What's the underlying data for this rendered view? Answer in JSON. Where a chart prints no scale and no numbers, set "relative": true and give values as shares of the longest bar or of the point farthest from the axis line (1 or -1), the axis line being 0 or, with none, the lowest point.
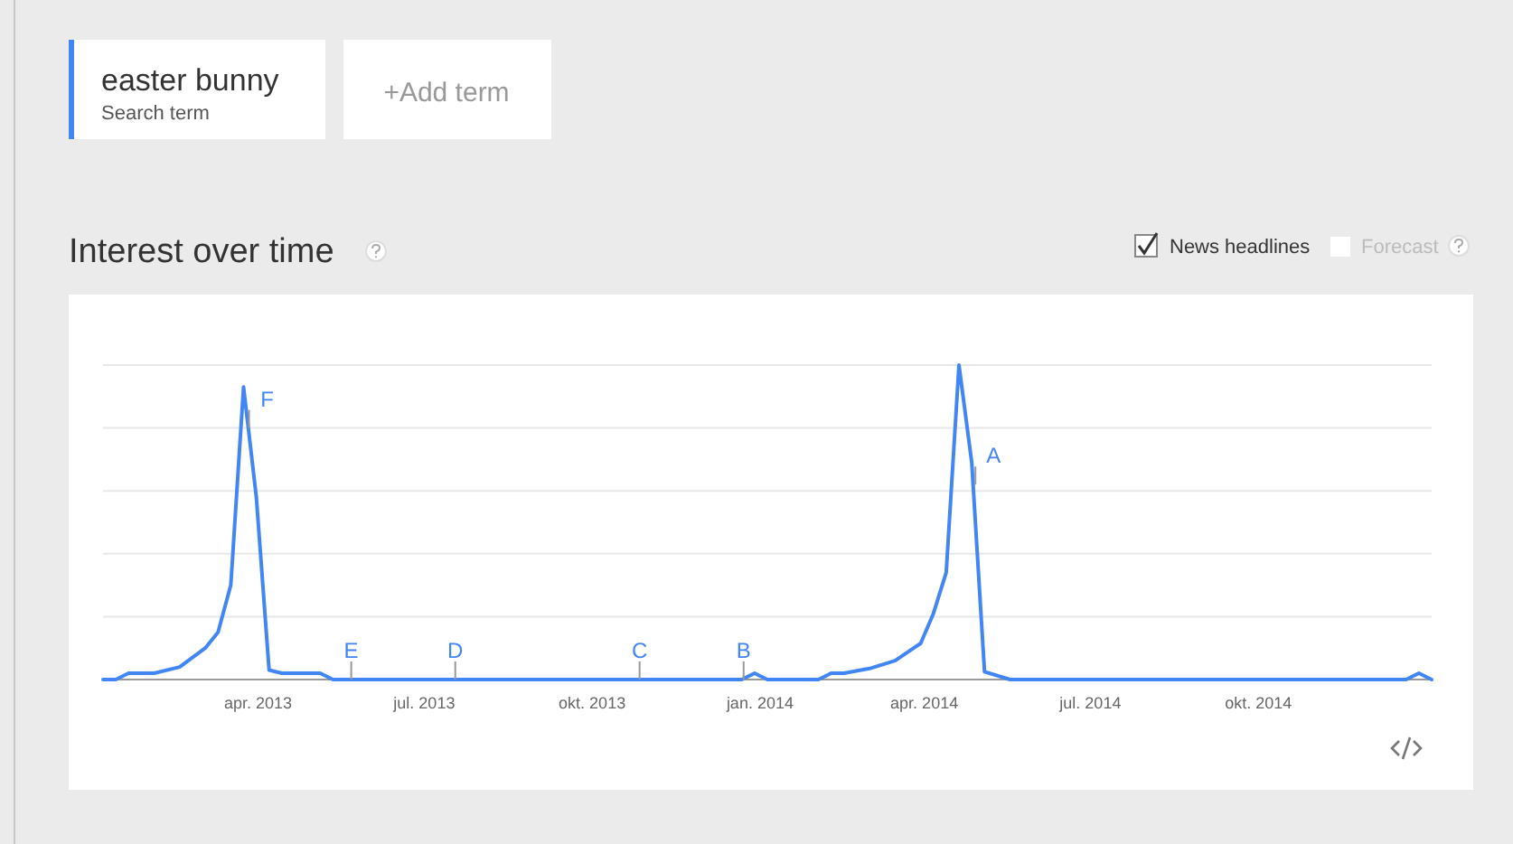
{
  "chart_data": {
    "type": "line",
    "title": "Interest over time",
    "relative": true,
    "grid": "y",
    "legend": "top left",
    "marker": "none",
    "line_style": "solid",
    "xlim": [
      "2013-01-06",
      "2015-01-04"
    ],
    "xticks": [
      {
        "value": "2013-04-01",
        "label": "apr. 2013"
      },
      {
        "value": "2013-07-01",
        "label": "jul. 2013"
      },
      {
        "value": "2013-10-01",
        "label": "okt. 2013"
      },
      {
        "value": "2014-01-01",
        "label": "jan. 2014"
      },
      {
        "value": "2014-04-01",
        "label": "apr. 2014"
      },
      {
        "value": "2014-07-01",
        "label": "jul. 2014"
      },
      {
        "value": "2014-10-01",
        "label": "okt. 2014"
      }
    ],
    "series": [
      {
        "name": "easter bunny",
        "color": "#4285f4",
        "x": [
          "2013-01-06",
          "2013-01-13",
          "2013-01-20",
          "2013-02-03",
          "2013-02-17",
          "2013-03-03",
          "2013-03-10",
          "2013-03-17",
          "2013-03-24",
          "2013-03-31",
          "2013-04-07",
          "2013-04-14",
          "2013-05-05",
          "2013-05-12",
          "2013-12-22",
          "2013-12-29",
          "2014-01-05",
          "2014-02-02",
          "2014-02-09",
          "2014-02-16",
          "2014-03-02",
          "2014-03-16",
          "2014-03-30",
          "2014-04-06",
          "2014-04-13",
          "2014-04-20",
          "2014-04-27",
          "2014-05-04",
          "2014-05-18",
          "2014-12-21",
          "2014-12-28",
          "2015-01-04"
        ],
        "values": [
          0,
          0,
          0.02,
          0.02,
          0.04,
          0.1,
          0.15,
          0.3,
          0.93,
          0.58,
          0.03,
          0.02,
          0.02,
          0,
          0,
          0.02,
          0,
          0,
          0.02,
          0.02,
          0.035,
          0.06,
          0.115,
          0.21,
          0.34,
          1,
          0.69,
          0.025,
          0,
          0,
          0.02,
          0
        ]
      }
    ],
    "annotations": [
      "Search term",
      "+Add term",
      "News headlines",
      "Forecast",
      {
        "text": "F",
        "x": "2013-03-27",
        "y": 0.8
      },
      {
        "text": "E",
        "x": "2013-05-22",
        "y": 0
      },
      {
        "text": "D",
        "x": "2013-07-18",
        "y": 0
      },
      {
        "text": "C",
        "x": "2013-10-27",
        "y": 0
      },
      {
        "text": "B",
        "x": "2013-12-23",
        "y": 0
      },
      {
        "text": "A",
        "x": "2014-04-29",
        "y": 0.62
      }
    ]
  }
}
